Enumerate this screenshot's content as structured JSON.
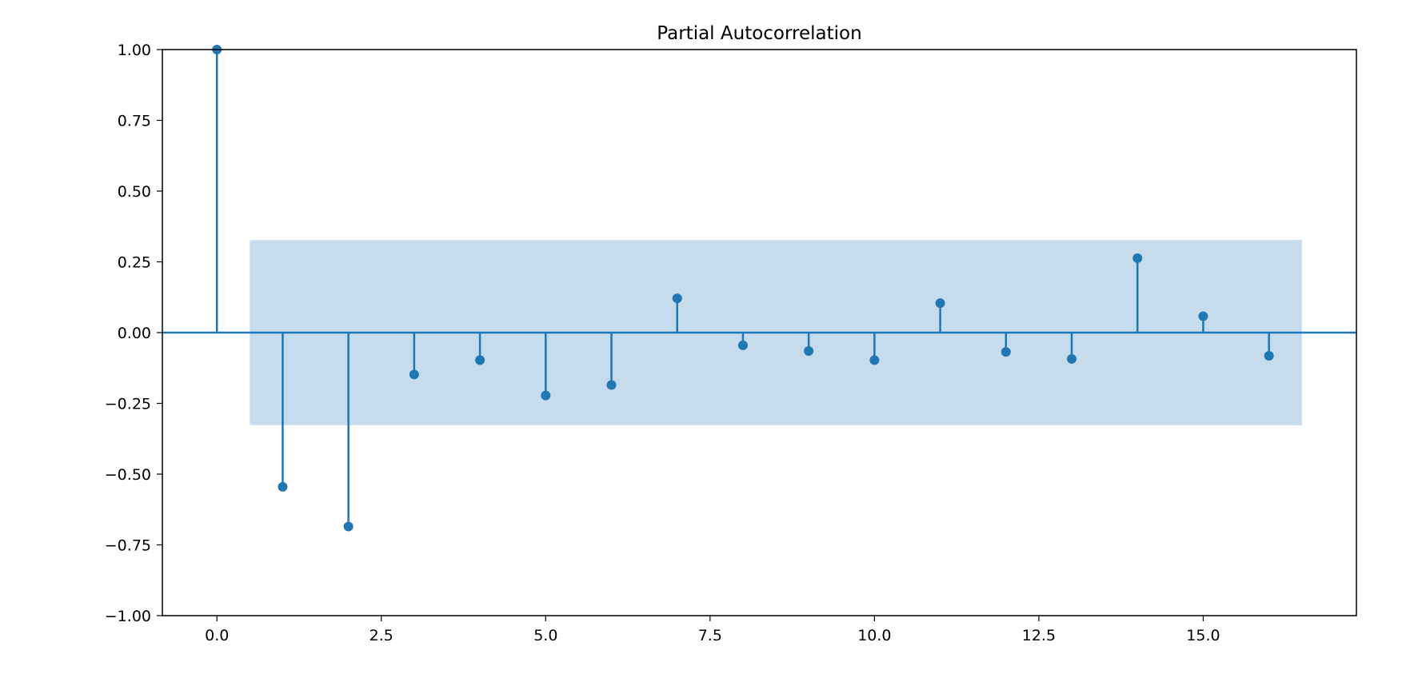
{
  "chart_data": {
    "type": "stem",
    "title": "Partial Autocorrelation",
    "xlabel": "",
    "ylabel": "",
    "x": [
      0,
      1,
      2,
      3,
      4,
      5,
      6,
      7,
      8,
      9,
      10,
      11,
      12,
      13,
      14,
      15,
      16
    ],
    "values": [
      1.0,
      -0.545,
      -0.685,
      -0.148,
      -0.097,
      -0.222,
      -0.185,
      0.121,
      -0.045,
      -0.065,
      -0.097,
      0.104,
      -0.068,
      -0.093,
      0.263,
      0.058,
      -0.082
    ],
    "confidence_band": {
      "x_start": 0.5,
      "x_end": 16.5,
      "lower": -0.327,
      "upper": 0.327
    },
    "xlim": [
      -0.83,
      17.33
    ],
    "ylim": [
      -1.0,
      1.0
    ],
    "xticks": [
      0.0,
      2.5,
      5.0,
      7.5,
      10.0,
      12.5,
      15.0
    ],
    "xtick_labels": [
      "0.0",
      "2.5",
      "5.0",
      "7.5",
      "10.0",
      "12.5",
      "15.0"
    ],
    "yticks": [
      1.0,
      0.75,
      0.5,
      0.25,
      0.0,
      -0.25,
      -0.5,
      -0.75,
      -1.0
    ],
    "ytick_labels": [
      "1.00",
      "0.75",
      "0.50",
      "0.25",
      "0.00",
      "−0.25",
      "−0.50",
      "−0.75",
      "−1.00"
    ],
    "grid": false,
    "colors": {
      "marker": "#1f77b4",
      "band": "#c6dbec",
      "axis": "#000000"
    }
  }
}
